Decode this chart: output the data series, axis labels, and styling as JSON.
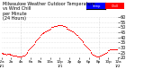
{
  "title": "Milwaukee Weather Outdoor Temperature\nvs Wind Chill\nper Minute\n(24 Hours)",
  "bg_color": "#ffffff",
  "plot_bg": "#ffffff",
  "grid_color": "#cccccc",
  "dot_color": "#ff0000",
  "legend_temp_color": "#0000ff",
  "legend_chill_color": "#ff0000",
  "legend_temp_label": "Temp",
  "legend_chill_label": "Chill",
  "ylim": [
    20,
    60
  ],
  "yticks": [
    20,
    25,
    30,
    35,
    40,
    45,
    50,
    55,
    60
  ],
  "ylabel_fontsize": 3.5,
  "xlabel_fontsize": 3.0,
  "title_fontsize": 3.5,
  "x_data": [
    0,
    1,
    2,
    3,
    4,
    5,
    6,
    7,
    8,
    9,
    10,
    11,
    12,
    13,
    14,
    15,
    16,
    17,
    18,
    19,
    20,
    21,
    22,
    23,
    24,
    25,
    26,
    27,
    28,
    29,
    30,
    31,
    32,
    33,
    34,
    35,
    36,
    37,
    38,
    39,
    40,
    41,
    42,
    43,
    44,
    45,
    46,
    47,
    48,
    49,
    50,
    51,
    52,
    53,
    54,
    55,
    56,
    57,
    58,
    59,
    60,
    61,
    62,
    63,
    64,
    65,
    66,
    67,
    68,
    69,
    70,
    71,
    72,
    73,
    74,
    75,
    76,
    77,
    78,
    79,
    80,
    81,
    82,
    83,
    84,
    85,
    86,
    87,
    88,
    89,
    90,
    91,
    92,
    93,
    94,
    95,
    96,
    97,
    98,
    99,
    100,
    101,
    102,
    103,
    104,
    105,
    106,
    107,
    108,
    109,
    110,
    111,
    112,
    113,
    114,
    115,
    116,
    117,
    118,
    119,
    120,
    121,
    122,
    123,
    124,
    125,
    126,
    127,
    128,
    129,
    130,
    131,
    132,
    133,
    134,
    135,
    136,
    137,
    138,
    139,
    140,
    141,
    142,
    143
  ],
  "y_data": [
    25,
    25,
    24,
    24,
    24,
    24,
    23,
    24,
    24,
    24,
    24,
    23,
    23,
    23,
    22,
    22,
    22,
    22,
    22,
    21,
    21,
    21,
    21,
    21,
    21,
    21,
    22,
    22,
    22,
    23,
    24,
    25,
    26,
    27,
    28,
    29,
    30,
    31,
    32,
    33,
    34,
    35,
    36,
    37,
    38,
    39,
    40,
    41,
    42,
    43,
    44,
    44,
    45,
    45,
    46,
    46,
    47,
    47,
    48,
    48,
    49,
    49,
    50,
    50,
    50,
    51,
    51,
    51,
    51,
    52,
    52,
    52,
    52,
    52,
    52,
    52,
    51,
    51,
    51,
    50,
    50,
    49,
    49,
    48,
    48,
    47,
    47,
    46,
    46,
    45,
    44,
    44,
    43,
    42,
    42,
    41,
    40,
    39,
    38,
    37,
    36,
    35,
    34,
    33,
    32,
    31,
    30,
    29,
    28,
    27,
    26,
    25,
    24,
    23,
    23,
    22,
    22,
    21,
    21,
    21,
    21,
    21,
    22,
    22,
    23,
    23,
    24,
    24,
    25,
    25,
    26,
    26,
    27,
    27,
    28,
    28,
    28,
    28,
    28,
    28,
    28,
    28,
    28,
    28
  ],
  "x_tick_positions": [
    0,
    12,
    24,
    36,
    48,
    60,
    72,
    84,
    96,
    108,
    120,
    132,
    144
  ],
  "x_tick_labels": [
    "12a\n1/1",
    "2a",
    "4a",
    "6a",
    "8a",
    "10a",
    "12p\n1/1",
    "2p",
    "4p",
    "6p",
    "8p",
    "10p",
    "12a\n1/2"
  ],
  "vline_x": [
    24,
    120
  ],
  "vline_color": "#bbbbbb"
}
